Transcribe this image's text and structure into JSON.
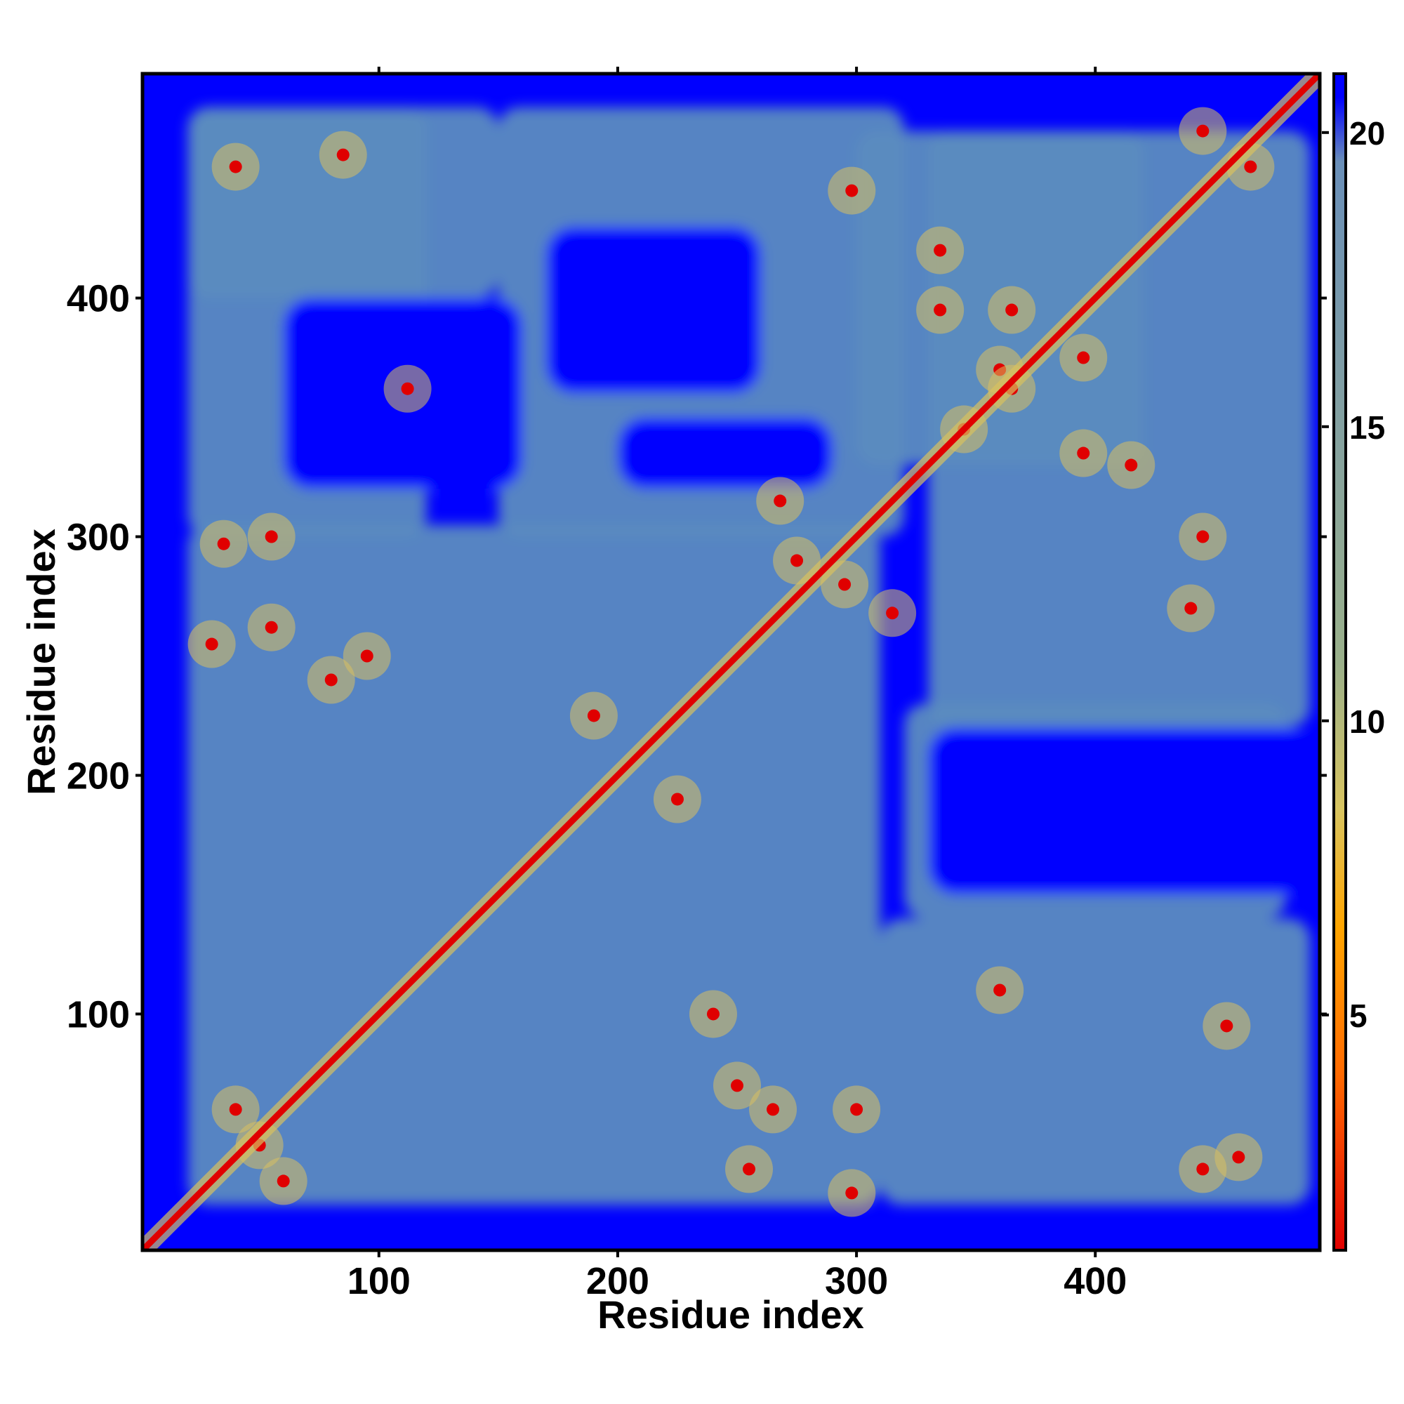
{
  "chart_data": {
    "type": "heatmap",
    "title": "",
    "xlabel": "Residue index",
    "ylabel": "Residue index",
    "xlim": [
      1,
      494
    ],
    "ylim": [
      1,
      494
    ],
    "x_ticks": [
      100,
      200,
      300,
      400
    ],
    "y_ticks": [
      100,
      200,
      300,
      400
    ],
    "colorbar": {
      "range": [
        1,
        21
      ],
      "ticks": [
        5,
        10,
        15,
        20
      ],
      "colors": [
        "#e00000",
        "#ff6a00",
        "#ffa500",
        "#d8c460",
        "#9ab08a",
        "#6a8fb8",
        "#0000ff"
      ],
      "stops": [
        1,
        4,
        6.5,
        8.5,
        11,
        19.5,
        20.6
      ]
    },
    "background_value": 21,
    "colors": {
      "background": "#0000ff",
      "contact_band": "#5b8bc0",
      "close_contact": "#d8c060",
      "diagonal": "#e00000"
    },
    "regions": [
      {
        "x": [
          1,
          494
        ],
        "y": [
          1,
          494
        ],
        "value": 21
      },
      {
        "x": [
          20,
          310
        ],
        "y": [
          20,
          305
        ],
        "value": 17.5
      },
      {
        "x": [
          310,
          490
        ],
        "y": [
          20,
          140
        ],
        "value": 17.5
      },
      {
        "x": [
          330,
          490
        ],
        "y": [
          220,
          470
        ],
        "value": 17.5
      },
      {
        "x": [
          150,
          320
        ],
        "y": [
          300,
          480
        ],
        "value": 17.5
      },
      {
        "x": [
          20,
          120
        ],
        "y": [
          300,
          480
        ],
        "value": 17.5
      },
      {
        "x": [
          300,
          420
        ],
        "y": [
          330,
          470
        ],
        "value": 17.5
      },
      {
        "x": [
          20,
          150
        ],
        "y": [
          400,
          480
        ],
        "value": 17.5
      },
      {
        "x": [
          320,
          480
        ],
        "y": [
          140,
          230
        ],
        "value": 17.5
      }
    ],
    "holes": [
      {
        "x": [
          330,
          490
        ],
        "y": [
          150,
          220
        ],
        "value": 21
      },
      {
        "x": [
          60,
          160
        ],
        "y": [
          320,
          400
        ],
        "value": 21
      },
      {
        "x": [
          170,
          260
        ],
        "y": [
          360,
          430
        ],
        "value": 21
      },
      {
        "x": [
          200,
          290
        ],
        "y": [
          320,
          350
        ],
        "value": 21
      }
    ],
    "contacts": [
      {
        "x": 40,
        "y": 60,
        "value": 9
      },
      {
        "x": 50,
        "y": 45,
        "value": 9
      },
      {
        "x": 60,
        "y": 30,
        "value": 9
      },
      {
        "x": 30,
        "y": 255,
        "value": 9
      },
      {
        "x": 55,
        "y": 262,
        "value": 9
      },
      {
        "x": 80,
        "y": 240,
        "value": 9
      },
      {
        "x": 95,
        "y": 250,
        "value": 9
      },
      {
        "x": 35,
        "y": 297,
        "value": 9
      },
      {
        "x": 55,
        "y": 300,
        "value": 9
      },
      {
        "x": 40,
        "y": 455,
        "value": 9
      },
      {
        "x": 85,
        "y": 460,
        "value": 9
      },
      {
        "x": 112,
        "y": 362,
        "value": 9
      },
      {
        "x": 190,
        "y": 225,
        "value": 9
      },
      {
        "x": 225,
        "y": 190,
        "value": 9
      },
      {
        "x": 240,
        "y": 100,
        "value": 9
      },
      {
        "x": 250,
        "y": 70,
        "value": 9
      },
      {
        "x": 265,
        "y": 60,
        "value": 9
      },
      {
        "x": 255,
        "y": 35,
        "value": 9
      },
      {
        "x": 298,
        "y": 25,
        "value": 9
      },
      {
        "x": 300,
        "y": 60,
        "value": 9
      },
      {
        "x": 275,
        "y": 290,
        "value": 9
      },
      {
        "x": 295,
        "y": 280,
        "value": 9
      },
      {
        "x": 268,
        "y": 315,
        "value": 9
      },
      {
        "x": 315,
        "y": 268,
        "value": 9
      },
      {
        "x": 298,
        "y": 445,
        "value": 9
      },
      {
        "x": 335,
        "y": 420,
        "value": 9
      },
      {
        "x": 335,
        "y": 395,
        "value": 9
      },
      {
        "x": 365,
        "y": 395,
        "value": 9
      },
      {
        "x": 360,
        "y": 370,
        "value": 9
      },
      {
        "x": 365,
        "y": 362,
        "value": 9
      },
      {
        "x": 345,
        "y": 345,
        "value": 9
      },
      {
        "x": 395,
        "y": 375,
        "value": 9
      },
      {
        "x": 395,
        "y": 335,
        "value": 9
      },
      {
        "x": 415,
        "y": 330,
        "value": 9
      },
      {
        "x": 445,
        "y": 300,
        "value": 9
      },
      {
        "x": 440,
        "y": 270,
        "value": 9
      },
      {
        "x": 445,
        "y": 470,
        "value": 9
      },
      {
        "x": 465,
        "y": 455,
        "value": 9
      },
      {
        "x": 360,
        "y": 110,
        "value": 9
      },
      {
        "x": 455,
        "y": 95,
        "value": 9
      },
      {
        "x": 460,
        "y": 40,
        "value": 9
      },
      {
        "x": 445,
        "y": 35,
        "value": 9
      }
    ]
  }
}
